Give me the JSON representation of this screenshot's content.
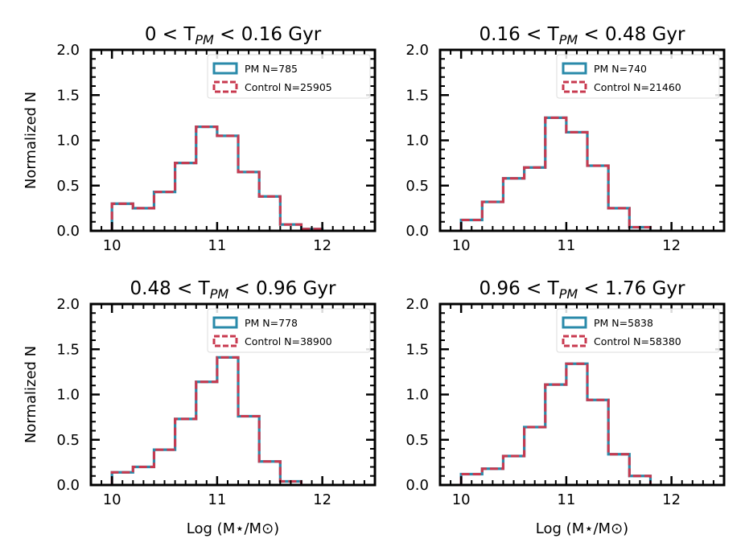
{
  "chart_data": [
    {
      "type": "histogram",
      "title_parts": {
        "pre": "0 < T",
        "sub": "PM",
        "post": " < 0.16 Gyr"
      },
      "xlabel": "",
      "ylabel": "Normalized N",
      "xlim": [
        9.8,
        12.5
      ],
      "ylim": [
        0,
        2.0
      ],
      "xticks": [
        "10",
        "11",
        "12"
      ],
      "yticks": [
        "0.0",
        "0.5",
        "1.0",
        "1.5",
        "2.0"
      ],
      "bin_edges": [
        10.0,
        10.2,
        10.4,
        10.6,
        10.8,
        11.0,
        11.2,
        11.4,
        11.6,
        11.8,
        12.0
      ],
      "series": [
        {
          "name": "PM",
          "legend": "PM N=785",
          "color": "#2a8aaa",
          "values": [
            0.3,
            0.25,
            0.43,
            0.75,
            1.15,
            1.05,
            0.65,
            0.38,
            0.07,
            0.02
          ]
        },
        {
          "name": "Control",
          "legend": "Control N=25905",
          "color": "#c8394f",
          "values": [
            0.3,
            0.25,
            0.43,
            0.75,
            1.15,
            1.05,
            0.65,
            0.38,
            0.07,
            0.02
          ]
        }
      ]
    },
    {
      "type": "histogram",
      "title_parts": {
        "pre": "0.16 < T",
        "sub": "PM",
        "post": " < 0.48 Gyr"
      },
      "xlabel": "",
      "ylabel": "",
      "xlim": [
        9.8,
        12.5
      ],
      "ylim": [
        0,
        2.0
      ],
      "xticks": [
        "10",
        "11",
        "12"
      ],
      "yticks": [
        "0.0",
        "0.5",
        "1.0",
        "1.5",
        "2.0"
      ],
      "bin_edges": [
        10.0,
        10.2,
        10.4,
        10.6,
        10.8,
        11.0,
        11.2,
        11.4,
        11.6,
        11.8
      ],
      "series": [
        {
          "name": "PM",
          "legend": "PM N=740",
          "color": "#2a8aaa",
          "values": [
            0.12,
            0.32,
            0.58,
            0.7,
            1.25,
            1.09,
            0.72,
            0.25,
            0.04
          ]
        },
        {
          "name": "Control",
          "legend": "Control N=21460",
          "color": "#c8394f",
          "values": [
            0.12,
            0.32,
            0.58,
            0.7,
            1.25,
            1.09,
            0.72,
            0.25,
            0.04
          ]
        }
      ]
    },
    {
      "type": "histogram",
      "title_parts": {
        "pre": "0.48 < T",
        "sub": "PM",
        "post": " < 0.96 Gyr"
      },
      "xlabel": "Log (M⋆/M⊙)",
      "ylabel": "Normalized N",
      "xlim": [
        9.8,
        12.5
      ],
      "ylim": [
        0,
        2.0
      ],
      "xticks": [
        "10",
        "11",
        "12"
      ],
      "yticks": [
        "0.0",
        "0.5",
        "1.0",
        "1.5",
        "2.0"
      ],
      "bin_edges": [
        10.0,
        10.2,
        10.4,
        10.6,
        10.8,
        11.0,
        11.2,
        11.4,
        11.6,
        11.8
      ],
      "series": [
        {
          "name": "PM",
          "legend": "PM N=778",
          "color": "#2a8aaa",
          "values": [
            0.14,
            0.2,
            0.39,
            0.73,
            1.14,
            1.41,
            0.76,
            0.26,
            0.04
          ]
        },
        {
          "name": "Control",
          "legend": "Control N=38900",
          "color": "#c8394f",
          "values": [
            0.14,
            0.2,
            0.39,
            0.73,
            1.14,
            1.41,
            0.76,
            0.26,
            0.04
          ]
        }
      ]
    },
    {
      "type": "histogram",
      "title_parts": {
        "pre": "0.96 < T",
        "sub": "PM",
        "post": " < 1.76 Gyr"
      },
      "xlabel": "Log (M⋆/M⊙)",
      "ylabel": "",
      "xlim": [
        9.8,
        12.5
      ],
      "ylim": [
        0,
        2.0
      ],
      "xticks": [
        "10",
        "11",
        "12"
      ],
      "yticks": [
        "0.0",
        "0.5",
        "1.0",
        "1.5",
        "2.0"
      ],
      "bin_edges": [
        10.0,
        10.2,
        10.4,
        10.6,
        10.8,
        11.0,
        11.2,
        11.4,
        11.6,
        11.8
      ],
      "series": [
        {
          "name": "PM",
          "legend": "PM N=5838",
          "color": "#2a8aaa",
          "values": [
            0.12,
            0.18,
            0.32,
            0.64,
            1.11,
            1.34,
            0.94,
            0.34,
            0.1
          ]
        },
        {
          "name": "Control",
          "legend": "Control N=58380",
          "color": "#c8394f",
          "values": [
            0.12,
            0.18,
            0.32,
            0.64,
            1.11,
            1.34,
            0.94,
            0.34,
            0.1
          ]
        }
      ]
    }
  ]
}
